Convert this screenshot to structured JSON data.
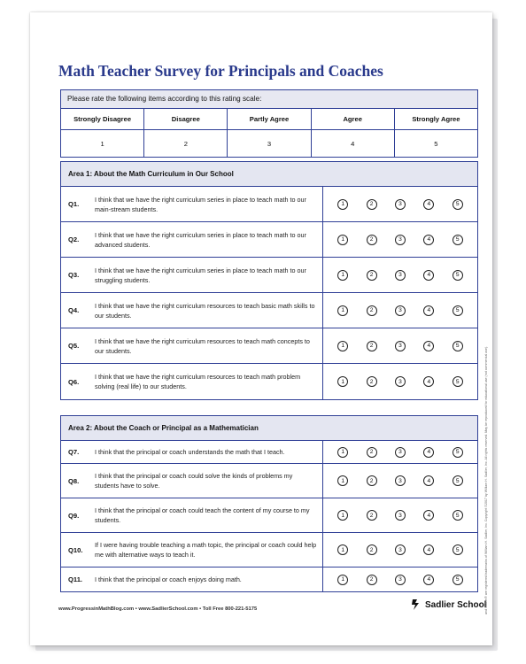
{
  "title": "Math Teacher Survey for Principals and Coaches",
  "scale": {
    "caption": "Please rate the following items according to this rating scale:",
    "labels": [
      "Strongly Disagree",
      "Disagree",
      "Partly Agree",
      "Agree",
      "Strongly Agree"
    ],
    "values": [
      "1",
      "2",
      "3",
      "4",
      "5"
    ]
  },
  "rating_choices": [
    "1",
    "2",
    "3",
    "4",
    "5"
  ],
  "area1": {
    "heading": "Area 1:  About the Math Curriculum in Our School",
    "questions": [
      {
        "num": "Q1.",
        "text": "I think that we have the right curriculum series in place to teach math to our main-stream students."
      },
      {
        "num": "Q2.",
        "text": "I think that we have the right curriculum series in place to teach math to our advanced students."
      },
      {
        "num": "Q3.",
        "text": "I think that we have the right curriculum series in place to teach math to our struggling students."
      },
      {
        "num": "Q4.",
        "text": "I think that we have the right curriculum resources to teach basic math skills to our students."
      },
      {
        "num": "Q5.",
        "text": "I think that we have the right curriculum resources to teach math concepts to our students."
      },
      {
        "num": "Q6.",
        "text": "I think that we have the right curriculum resources to teach math problem solving (real life) to our students."
      }
    ]
  },
  "area2": {
    "heading": "Area 2:  About the Coach or Principal as a Mathematician",
    "questions": [
      {
        "num": "Q7.",
        "text": "I think that the principal or coach understands the math that I teach."
      },
      {
        "num": "Q8.",
        "text": "I think that the principal or coach could solve the kinds of problems my students have to solve."
      },
      {
        "num": "Q9.",
        "text": "I think that the principal or coach could teach the content of my course to my students."
      },
      {
        "num": "Q10.",
        "text": "If I were having trouble teaching a math topic, the principal or coach could help me with alternative ways to teach it."
      },
      {
        "num": "Q11.",
        "text": "I think that the principal or coach enjoys doing math."
      }
    ]
  },
  "footer": {
    "links": "www.ProgressinMathBlog.com  •  www.SadlierSchool.com  •  Toll Free 800-221-5175",
    "brand": "Sadlier School",
    "side_note": "and Sadlier® are registered trademarks of William H. Sadlier, Inc.   Copyright ©2017 by William H. Sadlier, Inc. All rights reserved.   May be reproduced for educational use (not commercial use)."
  }
}
